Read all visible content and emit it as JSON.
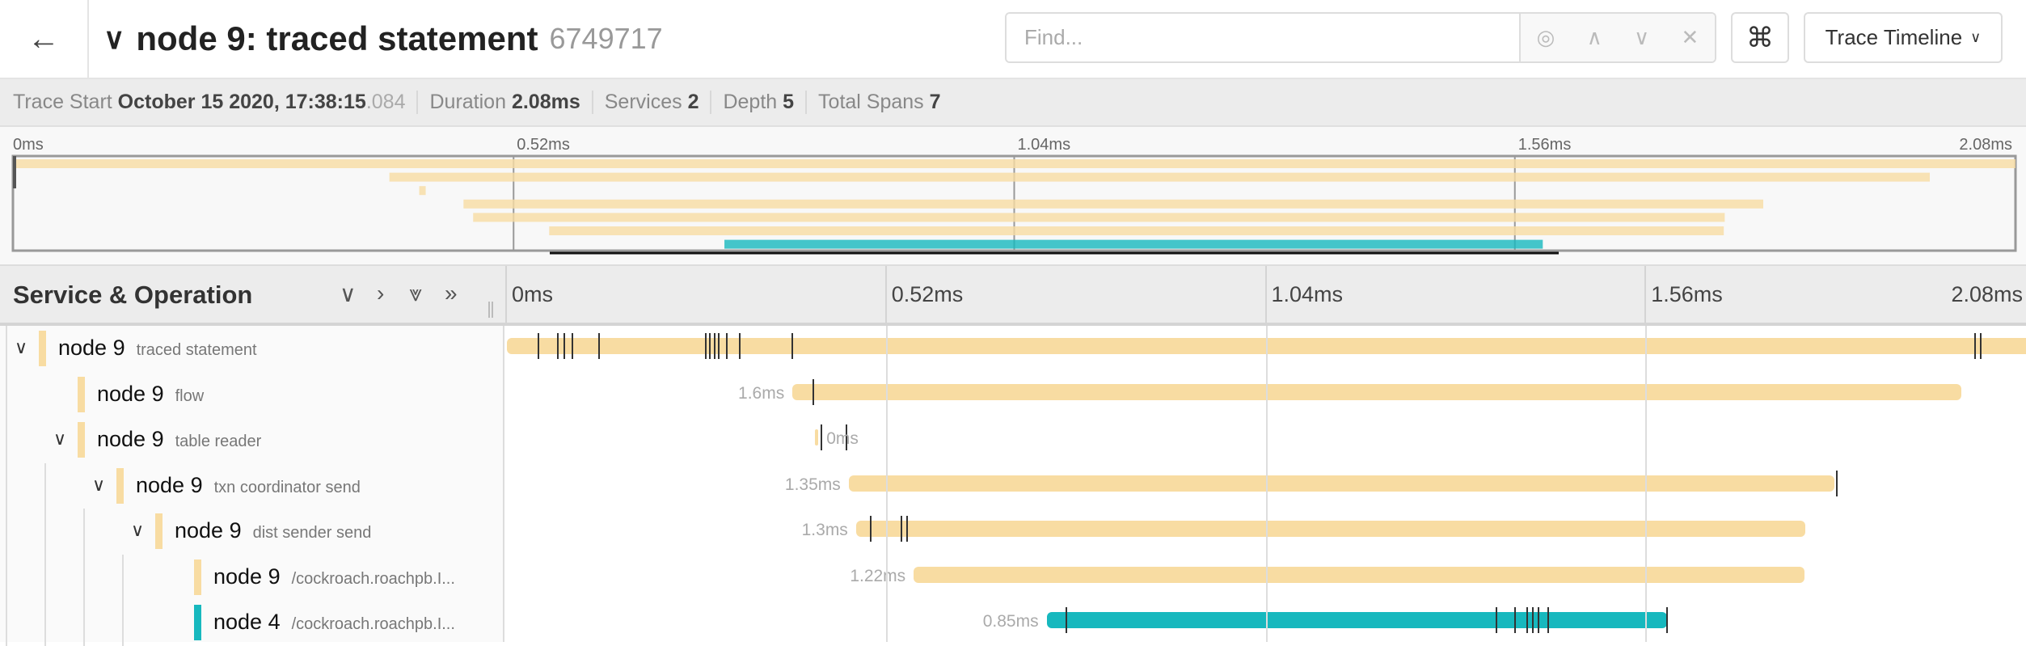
{
  "header": {
    "back_icon": "arrow-left-icon",
    "collapse_icon": "chevron-down-icon",
    "title": "node 9: traced statement",
    "trace_id": "6749717",
    "find_placeholder": "Find...",
    "find_value": "",
    "locate_icon": "target-icon",
    "prev_icon": "chevron-up-icon",
    "next_icon": "chevron-down-icon",
    "clear_icon": "close-icon",
    "shortcut_icon": "⌘",
    "view_select": "Trace Timeline"
  },
  "summary": [
    {
      "label": "Trace Start",
      "value": "October 15 2020, 17:38:15",
      "suffix": ".084"
    },
    {
      "label": "Duration",
      "value": "2.08ms"
    },
    {
      "label": "Services",
      "value": "2"
    },
    {
      "label": "Depth",
      "value": "5"
    },
    {
      "label": "Total Spans",
      "value": "7"
    }
  ],
  "ticks": [
    "0ms",
    "0.52ms",
    "1.04ms",
    "1.56ms",
    "2.08ms"
  ],
  "columns": {
    "title": "Service & Operation",
    "icons": [
      "chevron-down-icon",
      "chevron-right-icon",
      "double-chevron-down-icon",
      "double-chevron-right-icon"
    ]
  },
  "colors": {
    "node 9": "#f8dca2",
    "node 4": "#17b8be"
  },
  "trace_duration_ms": 2.08,
  "spans": [
    {
      "service": "node 9",
      "operation": "traced statement",
      "depth": 0,
      "collapsible": true,
      "start": 0,
      "duration": 2.08,
      "duration_label": "",
      "logs": [
        0.043,
        0.07,
        0.079,
        0.09,
        0.126,
        0.272,
        0.278,
        0.284,
        0.29,
        0.301,
        0.319,
        0.391,
        2.01,
        2.018
      ]
    },
    {
      "service": "node 9",
      "operation": "flow",
      "depth": 1,
      "collapsible": false,
      "start": 0.391,
      "duration": 1.6,
      "duration_label": "1.6ms",
      "logs": [
        0.42
      ]
    },
    {
      "service": "node 9",
      "operation": "table reader",
      "depth": 1,
      "collapsible": true,
      "start": 0.422,
      "duration": 0,
      "duration_label": "0ms",
      "logs": [
        0.431,
        0.465
      ]
    },
    {
      "service": "node 9",
      "operation": "txn coordinator send",
      "depth": 2,
      "collapsible": true,
      "start": 0.468,
      "duration": 1.35,
      "duration_label": "1.35ms",
      "logs": [
        1.821
      ]
    },
    {
      "service": "node 9",
      "operation": "dist sender send",
      "depth": 3,
      "collapsible": true,
      "start": 0.478,
      "duration": 1.3,
      "duration_label": "1.3ms",
      "logs": [
        0.498,
        0.54,
        0.548
      ]
    },
    {
      "service": "node 9",
      "operation": "/cockroach.roachpb.I...",
      "depth": 4,
      "collapsible": false,
      "start": 0.557,
      "duration": 1.22,
      "duration_label": "1.22ms",
      "logs": []
    },
    {
      "service": "node 4",
      "operation": "/cockroach.roachpb.I...",
      "depth": 4,
      "collapsible": false,
      "start": 0.739,
      "duration": 0.85,
      "duration_label": "0.85ms",
      "logs": [
        0.766,
        1.355,
        1.38,
        1.397,
        1.405,
        1.413,
        1.426,
        1.589
      ]
    }
  ]
}
